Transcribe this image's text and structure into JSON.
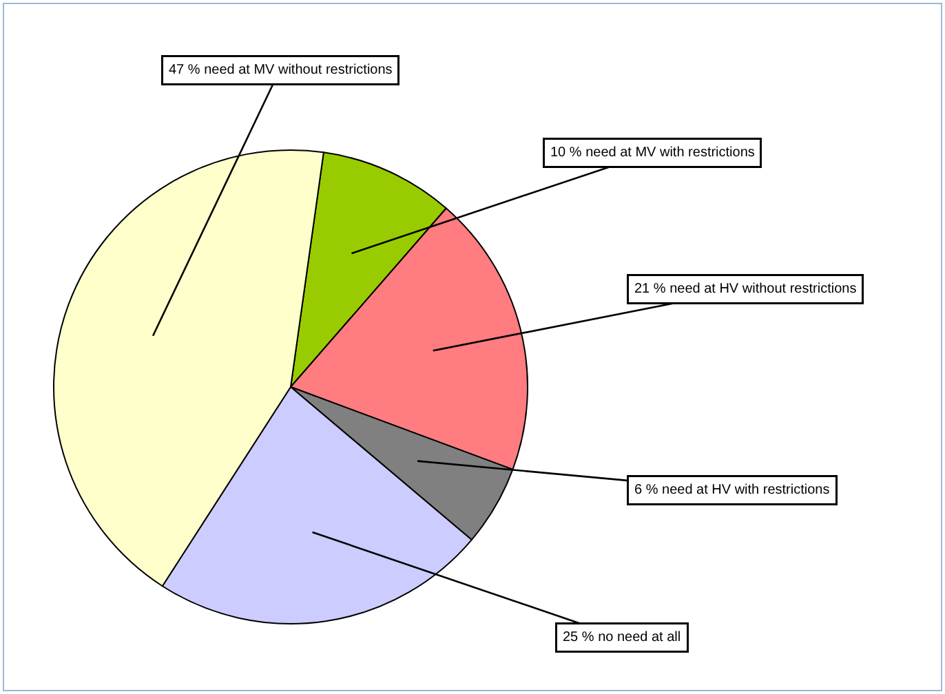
{
  "chart_data": {
    "type": "pie",
    "categories": [
      "10 % need at MV with restrictions",
      "21 % need at HV without restrictions",
      "6 % need at HV with restrictions",
      "25 % no need at all",
      "47 % need at MV without restrictions"
    ],
    "values": [
      10,
      21,
      6,
      25,
      47
    ],
    "colors": [
      "#99cc00",
      "#ff7c80",
      "#808080",
      "#ccccff",
      "#ffffcc"
    ],
    "legend": false
  }
}
